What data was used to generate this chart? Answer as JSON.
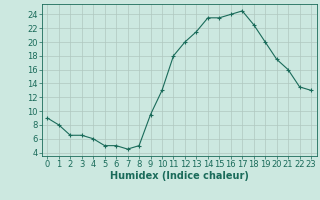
{
  "x": [
    0,
    1,
    2,
    3,
    4,
    5,
    6,
    7,
    8,
    9,
    10,
    11,
    12,
    13,
    14,
    15,
    16,
    17,
    18,
    19,
    20,
    21,
    22,
    23
  ],
  "y": [
    9,
    8,
    6.5,
    6.5,
    6,
    5,
    5,
    4.5,
    5,
    9.5,
    13,
    18,
    20,
    21.5,
    23.5,
    23.5,
    24,
    24.5,
    22.5,
    20,
    17.5,
    16,
    13.5,
    13
  ],
  "line_color": "#1a6b5a",
  "marker": "+",
  "bg_color": "#cce8e0",
  "grid_major_color": "#b0c8c0",
  "grid_minor_color": "#c4ddd8",
  "xlabel": "Humidex (Indice chaleur)",
  "xlim": [
    -0.5,
    23.5
  ],
  "ylim": [
    3.5,
    25.5
  ],
  "yticks": [
    4,
    6,
    8,
    10,
    12,
    14,
    16,
    18,
    20,
    22,
    24
  ],
  "xticks": [
    0,
    1,
    2,
    3,
    4,
    5,
    6,
    7,
    8,
    9,
    10,
    11,
    12,
    13,
    14,
    15,
    16,
    17,
    18,
    19,
    20,
    21,
    22,
    23
  ],
  "font_color": "#1a6b5a",
  "label_fontsize": 7,
  "tick_fontsize": 6
}
